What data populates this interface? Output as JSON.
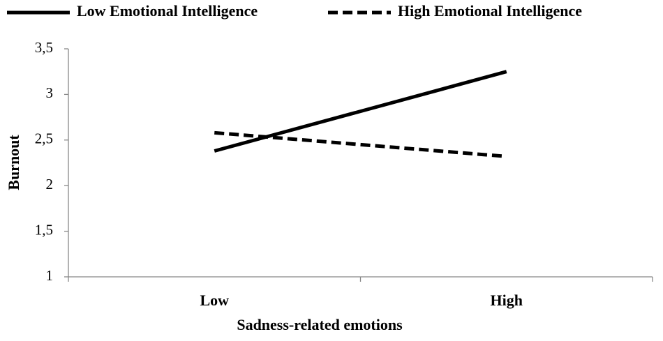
{
  "chart_data": {
    "type": "line",
    "x_label": "Sadness-related emotions",
    "y_label": "Burnout",
    "categories": [
      "Low",
      "High"
    ],
    "series": [
      {
        "name": "Low Emotional Intelligence",
        "color": "#000000",
        "line_style": "solid",
        "values": [
          2.38,
          3.25
        ]
      },
      {
        "name": "High Emotional Intelligence",
        "color": "#000000",
        "line_style": "dashed",
        "values": [
          2.58,
          2.32
        ]
      }
    ],
    "ylim": [
      1,
      3.5
    ],
    "yticks": [
      1,
      {
        "value": 1.5,
        "label": "1,5"
      },
      2,
      {
        "value": 2.5,
        "label": "2,5"
      },
      3,
      {
        "value": 3.5,
        "label": "3,5"
      }
    ],
    "grid": false,
    "legend": "top"
  }
}
